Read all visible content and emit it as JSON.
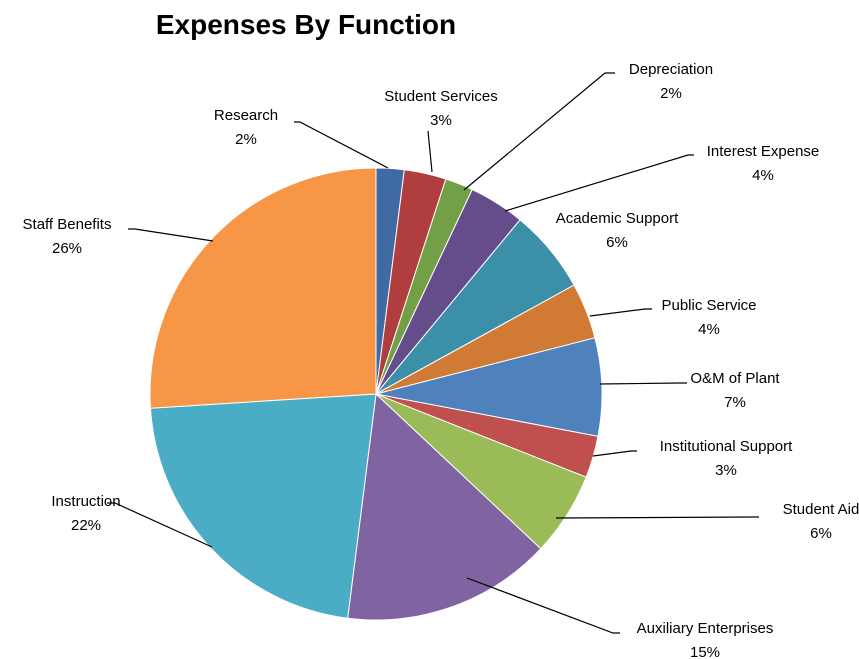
{
  "chart_data": {
    "type": "pie",
    "title": "Expenses By Function",
    "start_angle_deg": 0,
    "direction": "clockwise",
    "slices": [
      {
        "label": "Research",
        "pct": 2,
        "color": "#3F6AA4"
      },
      {
        "label": "Student Services",
        "pct": 3,
        "color": "#B13E3E"
      },
      {
        "label": "Depreciation",
        "pct": 2,
        "color": "#73A047"
      },
      {
        "label": "Interest Expense",
        "pct": 4,
        "color": "#654D8C"
      },
      {
        "label": "Academic Support",
        "pct": 6,
        "color": "#3C8FA8"
      },
      {
        "label": "Public Service",
        "pct": 4,
        "color": "#D07A35"
      },
      {
        "label": "O&M of Plant",
        "pct": 7,
        "color": "#4F81BD"
      },
      {
        "label": "Institutional Support",
        "pct": 3,
        "color": "#C0504D"
      },
      {
        "label": "Student Aid",
        "pct": 6,
        "color": "#9BBB59"
      },
      {
        "label": "Auxiliary Enterprises",
        "pct": 15,
        "color": "#8064A2"
      },
      {
        "label": "Instruction",
        "pct": 22,
        "color": "#4BACC6"
      },
      {
        "label": "Staff Benefits",
        "pct": 26,
        "color": "#F79646"
      }
    ]
  }
}
